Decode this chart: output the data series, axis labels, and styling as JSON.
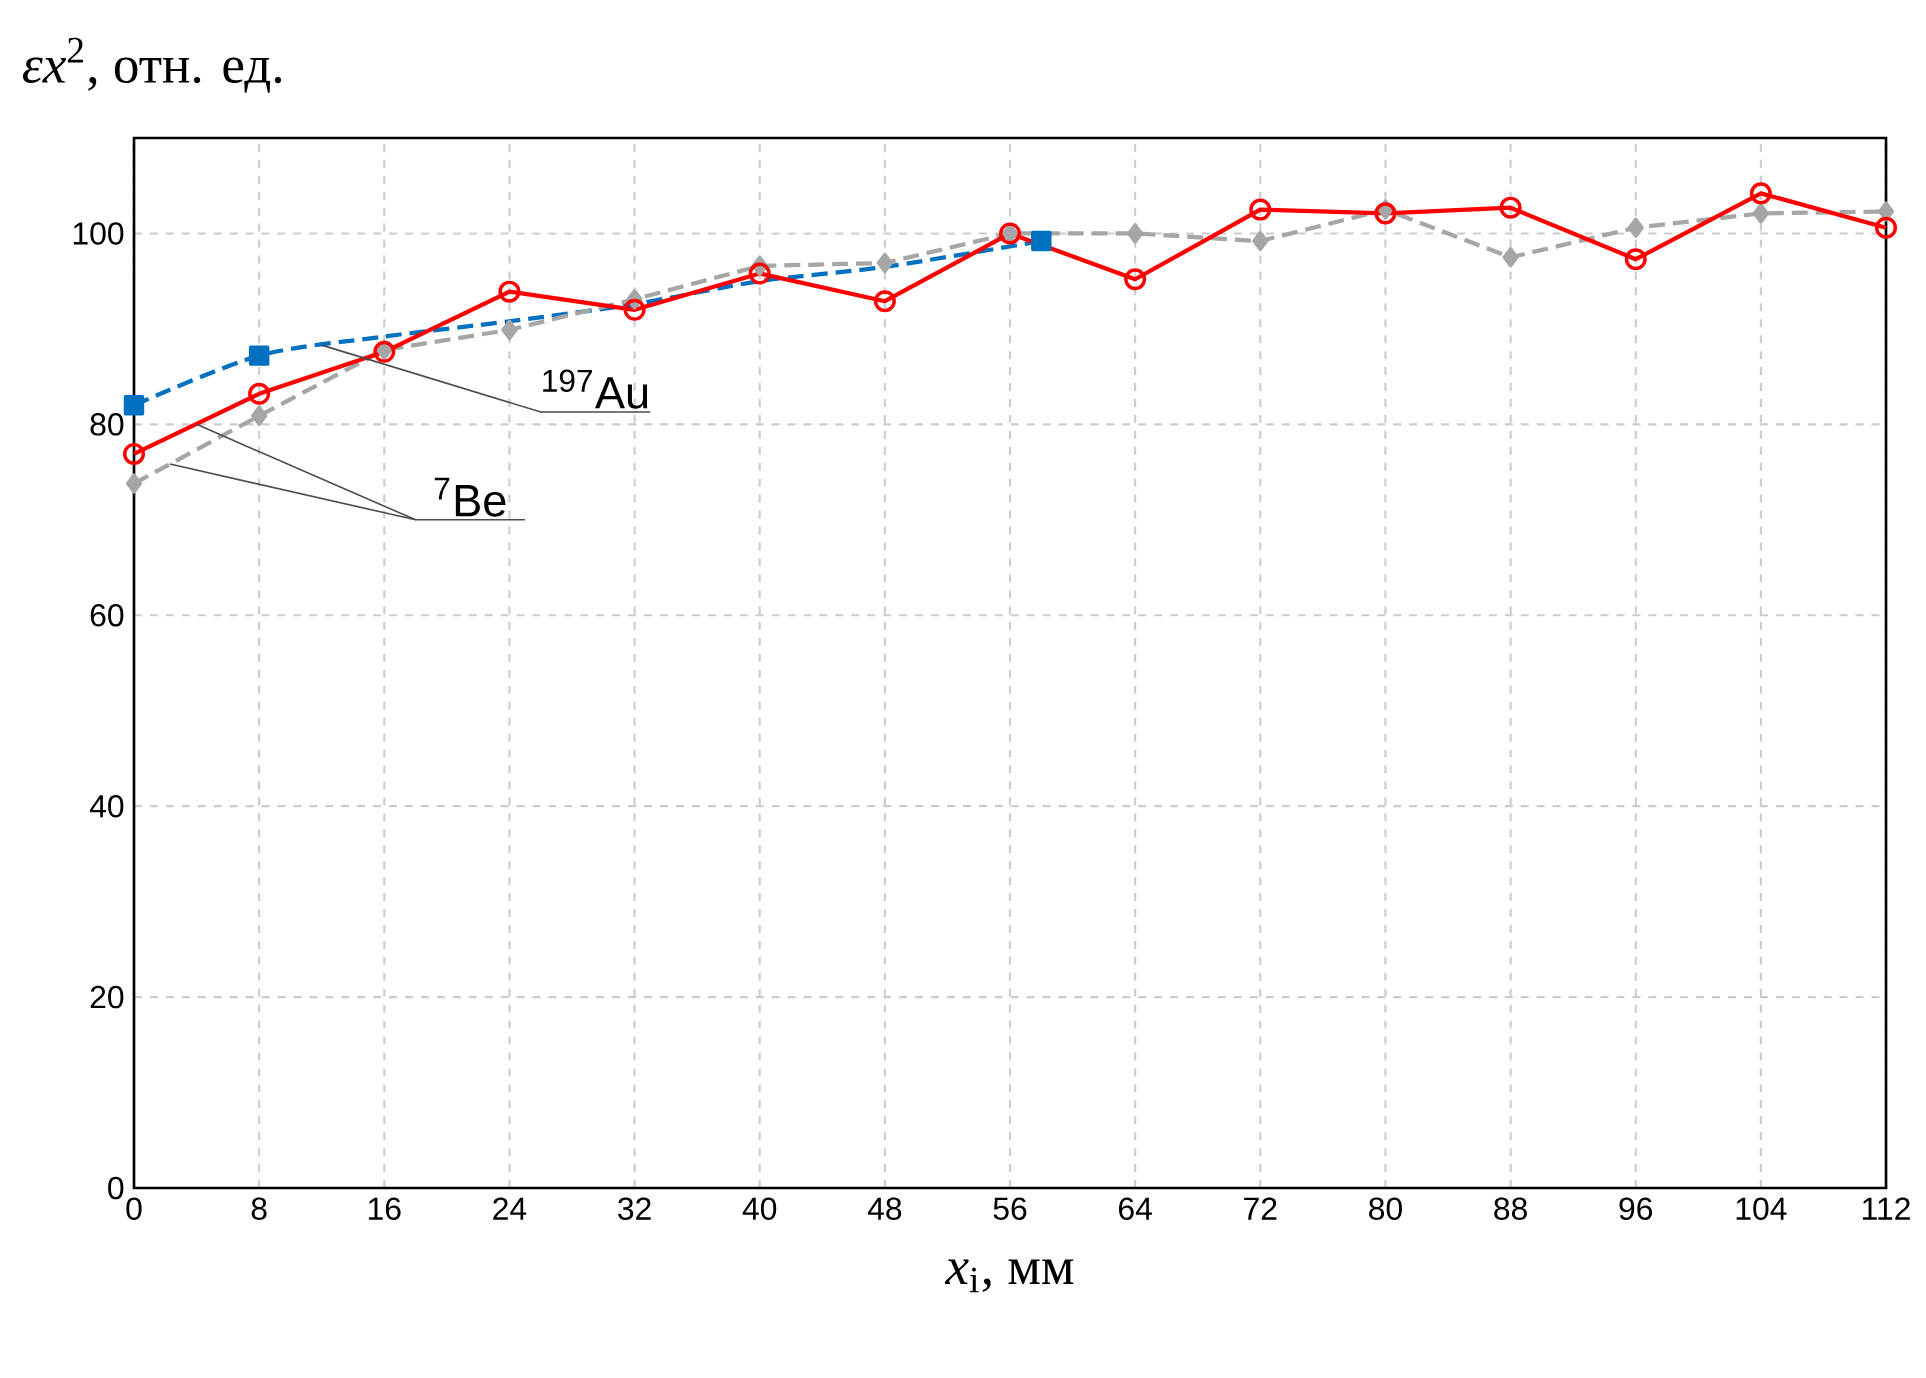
{
  "chart_data": {
    "type": "line",
    "ylabel": "*εx*$^{2}$, отн. ед.",
    "xlabel": "*x*$_{i}$, мм",
    "xlim": [
      0,
      112
    ],
    "xticks": [
      0,
      8,
      16,
      24,
      32,
      40,
      48,
      56,
      64,
      72,
      80,
      88,
      96,
      104,
      112
    ],
    "ylim": [
      0,
      110
    ],
    "yticks": [
      0,
      20,
      40,
      60,
      80,
      100
    ],
    "grid": true,
    "series": [
      {
        "color": "#0070c0",
        "line_style": "dashed",
        "marker": "none",
        "x": [
          0,
          8,
          16,
          24,
          32,
          40,
          48,
          58
        ],
        "values": [
          82,
          87.2,
          89.2,
          90.8,
          92.6,
          95,
          96.5,
          99.2
        ]
      },
      {
        "type": "scatter",
        "color": "#0070c0",
        "marker": "square",
        "x": [
          0,
          8,
          58
        ],
        "values": [
          82,
          87.2,
          99.2
        ]
      },
      {
        "color": "#a6a6a6",
        "line_style": "dashed",
        "marker": "diamond",
        "x": [
          0,
          8,
          16,
          24,
          32,
          40,
          48,
          56,
          64,
          72,
          80,
          88,
          96,
          104,
          112
        ],
        "values": [
          73.8,
          80.9,
          87.8,
          89.9,
          93.1,
          96.6,
          96.9,
          100,
          100,
          99.2,
          102.5,
          97.5,
          100.6,
          102.1,
          102.3
        ]
      },
      {
        "color": "#ff0000",
        "line_style": "solid",
        "marker": "circle",
        "x": [
          0,
          8,
          16,
          24,
          32,
          40,
          48,
          56,
          64,
          72,
          80,
          88,
          96,
          104,
          112
        ],
        "values": [
          76.9,
          83.2,
          87.6,
          93.9,
          92,
          95.8,
          92.9,
          100,
          95.2,
          102.5,
          102.1,
          102.7,
          97.3,
          104.2,
          100.6
        ]
      }
    ],
    "annotations": [
      {
        "text": "$^{197}$Au",
        "x": 12,
        "y": 88.3
      },
      {
        "text": "$^{7}$Be",
        "x": 4,
        "y": 80
      }
    ]
  }
}
